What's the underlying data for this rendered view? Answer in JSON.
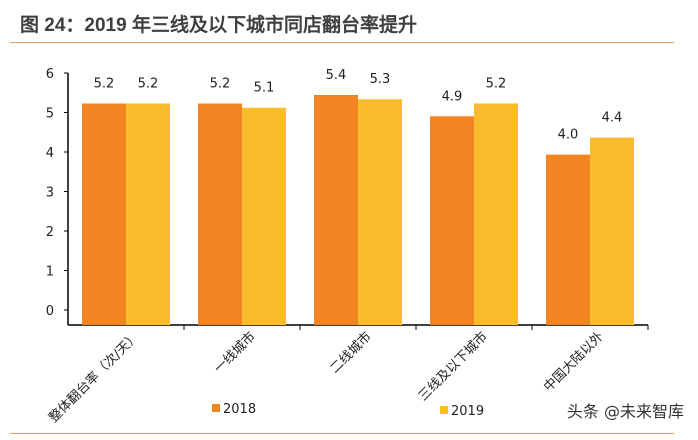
{
  "title": "图 24：2019 年三线及以下城市同店翻台率提升",
  "watermark": "头条 @未来智库",
  "chart_data": {
    "type": "bar",
    "title": "",
    "categories": [
      "整体翻台率（次/天）",
      "一线城市",
      "二线城市",
      "三线及以下城市",
      "中国大陆以外"
    ],
    "series": [
      {
        "name": "2018",
        "color": "#f28522",
        "values": [
          5.2,
          5.2,
          5.4,
          4.9,
          4.0
        ]
      },
      {
        "name": "2019",
        "color": "#f9bc2c",
        "values": [
          5.2,
          5.1,
          5.3,
          5.2,
          4.4
        ]
      }
    ],
    "yticks": [
      0,
      1,
      2,
      3,
      4,
      5,
      6
    ],
    "ylim": [
      0,
      6
    ],
    "grid": false,
    "legend": "bottom"
  }
}
